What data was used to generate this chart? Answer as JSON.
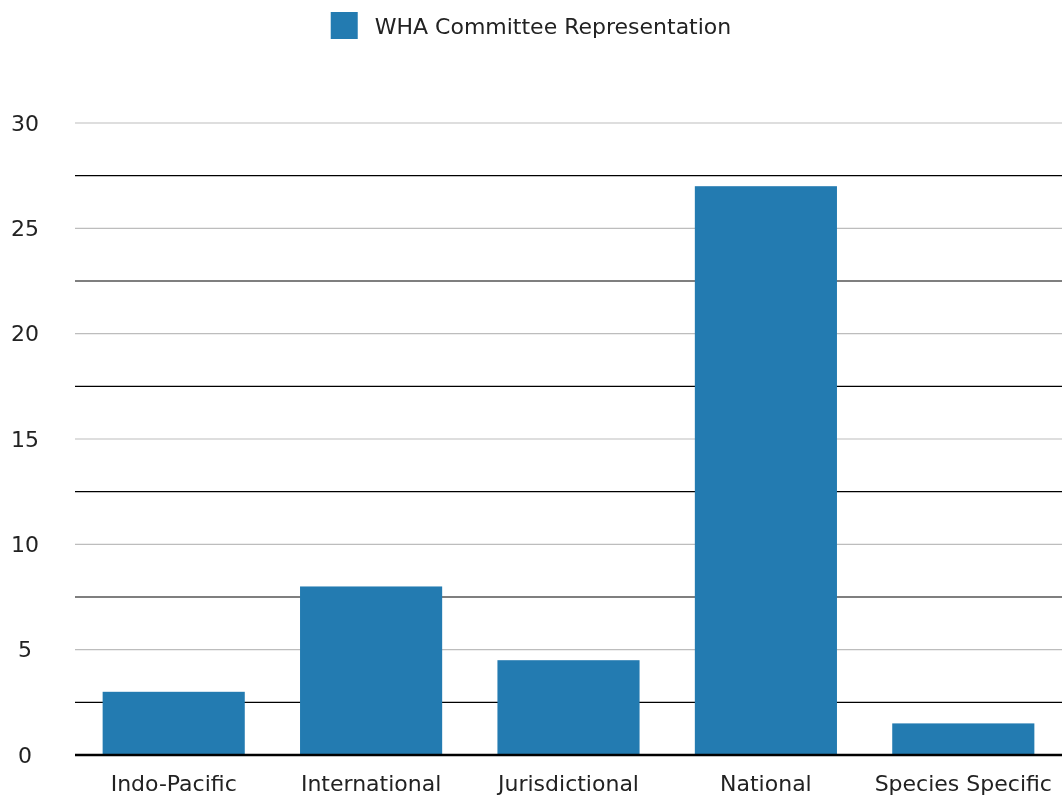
{
  "chart_data": {
    "type": "bar",
    "categories": [
      "Indo-Pacific",
      "International",
      "Jurisdictional",
      "National",
      "Species Specific"
    ],
    "series": [
      {
        "name": "WHA Committee Representation",
        "color": "#237bb1",
        "values": [
          3,
          8,
          4.5,
          27,
          1.5
        ]
      }
    ],
    "ylim": [
      0,
      30
    ],
    "yticks": [
      0,
      {
        "value": 2.5,
        "label": null
      },
      5,
      {
        "value": 7.5,
        "label": null
      },
      10,
      {
        "value": 12.5,
        "label": null
      },
      15,
      {
        "value": 17.5,
        "label": null
      },
      20,
      {
        "value": 22.5,
        "label": null
      },
      25,
      {
        "value": 27.5,
        "label": null
      },
      30
    ],
    "grid": "y",
    "legend": "top"
  }
}
